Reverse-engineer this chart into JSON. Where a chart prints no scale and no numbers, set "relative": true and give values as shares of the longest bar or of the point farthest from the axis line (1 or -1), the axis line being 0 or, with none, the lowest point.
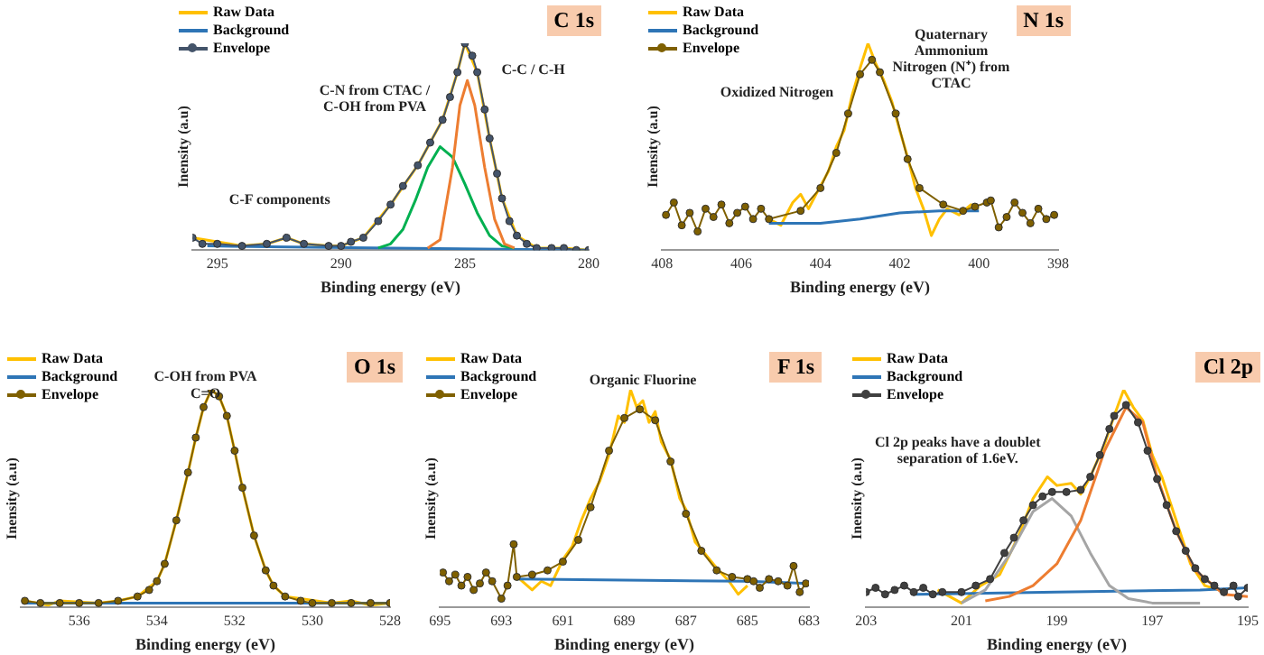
{
  "chart_data": [
    {
      "type": "line",
      "title": "C 1s",
      "xlabel": "Binding energy (eV)",
      "ylabel": "Inensity (a.u)",
      "relative": true,
      "xlim": [
        296,
        280
      ],
      "xticks": [
        295,
        290,
        285,
        280
      ],
      "legend": "top left",
      "annotations": [
        "C-F components",
        "C-N from CTAC / C-OH from PVA",
        "C-C / C-H"
      ],
      "series": [
        {
          "name": "Raw Data",
          "color": "#ffc000",
          "marker": "none",
          "x": [
            296,
            295.5,
            295,
            294.5,
            294,
            293,
            292.2,
            291.5,
            290.5,
            290,
            289.1,
            288,
            286.9,
            285.9,
            285.3,
            285,
            284.5,
            284,
            283.5,
            282.9,
            282.1,
            281,
            280
          ],
          "values": [
            0.06,
            0.05,
            0.04,
            0.03,
            0.02,
            0.03,
            0.06,
            0.03,
            0.02,
            0.02,
            0.06,
            0.22,
            0.41,
            0.63,
            0.86,
            1,
            0.86,
            0.54,
            0.25,
            0.07,
            0.01,
            0.01,
            0
          ]
        },
        {
          "name": "Background",
          "color": "#2e75b6",
          "marker": "none",
          "x": [
            295.4,
            288,
            280
          ],
          "values": [
            0.02,
            0.01,
            0
          ]
        },
        {
          "color": "#00b050",
          "marker": "none",
          "x": [
            288.5,
            288,
            287.5,
            287,
            286.5,
            286,
            285.5,
            285,
            284.5,
            284,
            283.5,
            283
          ],
          "values": [
            0.01,
            0.03,
            0.1,
            0.24,
            0.4,
            0.5,
            0.45,
            0.32,
            0.18,
            0.07,
            0.02,
            0.01
          ]
        },
        {
          "color": "#ed7d31",
          "marker": "none",
          "x": [
            286.5,
            286,
            285.5,
            285.2,
            284.9,
            284.6,
            284.2,
            283.8,
            283.4,
            283
          ],
          "values": [
            0.01,
            0.05,
            0.4,
            0.7,
            0.82,
            0.7,
            0.4,
            0.15,
            0.03,
            0.01
          ]
        },
        {
          "name": "Envelope",
          "color": "#44546a",
          "marker": "circle",
          "x": [
            296,
            295.6,
            295,
            294,
            293,
            292.2,
            291.5,
            290.5,
            290,
            289.6,
            289.1,
            288.5,
            288,
            287.5,
            286.9,
            286.4,
            285.9,
            285.6,
            285.3,
            285,
            284.7,
            284.5,
            284.2,
            284,
            283.7,
            283.5,
            283.2,
            282.9,
            282.5,
            282.1,
            281.5,
            281,
            280.5,
            280
          ],
          "values": [
            0.06,
            0.03,
            0.03,
            0.02,
            0.03,
            0.06,
            0.03,
            0.02,
            0.02,
            0.04,
            0.06,
            0.14,
            0.22,
            0.31,
            0.41,
            0.52,
            0.63,
            0.74,
            0.86,
            1,
            0.94,
            0.86,
            0.68,
            0.54,
            0.37,
            0.25,
            0.14,
            0.07,
            0.03,
            0.01,
            0.01,
            0.01,
            0,
            0
          ]
        }
      ]
    },
    {
      "type": "line",
      "title": "N 1s",
      "xlabel": "Binding energy (eV)",
      "ylabel": "Inensity (a.u)",
      "relative": true,
      "xlim": [
        408,
        398
      ],
      "xticks": [
        408,
        406,
        404,
        402,
        400,
        398
      ],
      "legend": "top left",
      "annotations": [
        "Oxidized Nitrogen",
        "Quaternary Ammonium Nitrogen (N⁺) from CTAC"
      ],
      "series": [
        {
          "name": "Raw Data",
          "color": "#ffc000",
          "marker": "none",
          "x": [
            405.3,
            405,
            404.7,
            404.5,
            404.3,
            404,
            403.8,
            403.6,
            403.4,
            403.2,
            403,
            402.8,
            402.6,
            402.4,
            402.2,
            402,
            401.8,
            401.6,
            401.4,
            401.2,
            401,
            400.8,
            400.5,
            400.2,
            400
          ],
          "values": [
            0.15,
            0.12,
            0.23,
            0.27,
            0.2,
            0.31,
            0.38,
            0.5,
            0.58,
            0.75,
            0.88,
            1,
            0.9,
            0.82,
            0.72,
            0.58,
            0.45,
            0.3,
            0.2,
            0.07,
            0.15,
            0.2,
            0.17,
            0.22,
            0.2
          ]
        },
        {
          "name": "Background",
          "color": "#2e75b6",
          "marker": "none",
          "x": [
            405.3,
            404,
            403,
            402,
            401,
            400
          ],
          "values": [
            0.13,
            0.13,
            0.15,
            0.18,
            0.19,
            0.19
          ]
        },
        {
          "name": "Envelope",
          "color": "#7f6000",
          "marker": "circle",
          "x": [
            407.9,
            407.7,
            407.5,
            407.3,
            407.1,
            406.9,
            406.7,
            406.5,
            406.3,
            406.1,
            405.9,
            405.7,
            405.5,
            405.3,
            404.5,
            404,
            403.6,
            403.3,
            403,
            402.7,
            402.5,
            402.1,
            401.8,
            401.5,
            400.9,
            400.4,
            400.1,
            399.8,
            399.7,
            399.5,
            399.3,
            399.1,
            398.9,
            398.7,
            398.5,
            398.3,
            398.1
          ],
          "values": [
            0.17,
            0.23,
            0.12,
            0.18,
            0.09,
            0.2,
            0.16,
            0.22,
            0.13,
            0.18,
            0.21,
            0.15,
            0.2,
            0.15,
            0.19,
            0.3,
            0.47,
            0.66,
            0.85,
            0.92,
            0.86,
            0.66,
            0.44,
            0.3,
            0.22,
            0.19,
            0.21,
            0.23,
            0.24,
            0.11,
            0.16,
            0.23,
            0.18,
            0.13,
            0.2,
            0.15,
            0.17
          ]
        }
      ]
    },
    {
      "type": "line",
      "title": "O 1s",
      "xlabel": "Binding energy (eV)",
      "ylabel": "Inensity (a.u)",
      "relative": true,
      "xlim": [
        537.5,
        528
      ],
      "xticks": [
        536,
        534,
        532,
        530,
        528
      ],
      "legend": "top left",
      "annotations": [
        "C-OH from PVA",
        "C=O"
      ],
      "series": [
        {
          "name": "Raw Data",
          "color": "#ffc000",
          "marker": "none",
          "x": [
            537.4,
            536.8,
            536.5,
            535.5,
            535,
            534.5,
            534,
            533.8,
            533.5,
            533.2,
            533,
            532.8,
            532.6,
            532.4,
            532.2,
            532,
            531.8,
            531.5,
            531.2,
            531,
            530.7,
            530.3,
            529.5,
            529,
            528.5,
            528
          ],
          "values": [
            0.03,
            0.01,
            0.03,
            0.02,
            0.03,
            0.05,
            0.12,
            0.2,
            0.4,
            0.62,
            0.78,
            0.92,
            1,
            0.97,
            0.88,
            0.72,
            0.55,
            0.33,
            0.17,
            0.1,
            0.05,
            0.04,
            0.02,
            0.03,
            0.01,
            0.02
          ]
        },
        {
          "name": "Background",
          "color": "#2e75b6",
          "marker": "none",
          "x": [
            537.4,
            528
          ],
          "values": [
            0.02,
            0.02
          ]
        },
        {
          "name": "Envelope",
          "color": "#7f6000",
          "marker": "circle",
          "x": [
            537.4,
            537,
            536.5,
            536,
            535.5,
            535,
            534.5,
            534.2,
            534,
            533.8,
            533.5,
            533.2,
            533,
            532.8,
            532.6,
            532.4,
            532.2,
            532,
            531.8,
            531.5,
            531.2,
            531,
            530.7,
            530.3,
            530,
            529.5,
            529,
            528.5,
            528
          ],
          "values": [
            0.03,
            0.02,
            0.02,
            0.02,
            0.02,
            0.03,
            0.05,
            0.08,
            0.12,
            0.2,
            0.4,
            0.62,
            0.78,
            0.92,
            1,
            0.97,
            0.88,
            0.72,
            0.55,
            0.33,
            0.17,
            0.1,
            0.05,
            0.03,
            0.02,
            0.02,
            0.02,
            0.02,
            0.02
          ]
        }
      ]
    },
    {
      "type": "line",
      "title": "F 1s",
      "xlabel": "Binding energy (eV)",
      "ylabel": "Inensity (a.u)",
      "relative": true,
      "xlim": [
        695,
        683
      ],
      "xticks": [
        695,
        693,
        691,
        689,
        687,
        685,
        683
      ],
      "legend": "top left",
      "annotations": [
        "Organic Fluorine"
      ],
      "series": [
        {
          "name": "Raw Data",
          "color": "#ffc000",
          "marker": "none",
          "x": [
            692.4,
            692,
            691.7,
            691.4,
            691,
            690.7,
            690.4,
            690.1,
            689.8,
            689.5,
            689.2,
            689,
            688.8,
            688.6,
            688.4,
            688.2,
            688,
            687.8,
            687.5,
            687.2,
            687,
            686.7,
            686.4,
            686,
            685.6,
            685.3,
            685
          ],
          "values": [
            0.13,
            0.08,
            0.12,
            0.1,
            0.22,
            0.28,
            0.4,
            0.5,
            0.58,
            0.7,
            0.88,
            0.85,
            1,
            0.92,
            0.95,
            0.85,
            0.9,
            0.76,
            0.68,
            0.5,
            0.45,
            0.3,
            0.25,
            0.18,
            0.12,
            0.06,
            0.1
          ]
        },
        {
          "name": "Background",
          "color": "#2e75b6",
          "marker": "none",
          "x": [
            692.5,
            689,
            685,
            683
          ],
          "values": [
            0.13,
            0.125,
            0.12,
            0.11
          ]
        },
        {
          "name": "Envelope",
          "color": "#7f6000",
          "marker": "circle",
          "x": [
            694.9,
            694.7,
            694.5,
            694.3,
            694.1,
            693.9,
            693.7,
            693.5,
            693.3,
            693,
            692.8,
            692.6,
            692.5,
            692,
            691.5,
            691,
            690.5,
            690.1,
            689.5,
            689,
            688.5,
            688,
            687.5,
            687,
            686.5,
            686,
            685.5,
            685,
            684.8,
            684.6,
            684.3,
            684,
            683.7,
            683.5,
            683.3,
            683.1
          ],
          "values": [
            0.16,
            0.12,
            0.15,
            0.1,
            0.14,
            0.08,
            0.11,
            0.16,
            0.12,
            0.04,
            0.1,
            0.29,
            0.14,
            0.15,
            0.17,
            0.21,
            0.31,
            0.46,
            0.72,
            0.87,
            0.91,
            0.86,
            0.67,
            0.43,
            0.26,
            0.17,
            0.14,
            0.13,
            0.12,
            0.09,
            0.13,
            0.12,
            0.1,
            0.19,
            0.07,
            0.11
          ]
        }
      ]
    },
    {
      "type": "line",
      "title": "Cl 2p",
      "xlabel": "Binding energy (eV)",
      "ylabel": "Inensity (a.u)",
      "relative": true,
      "xlim": [
        203,
        195
      ],
      "xticks": [
        203,
        201,
        199,
        197,
        195
      ],
      "legend": "top left",
      "annotations": [
        "Cl 2p peaks have a doublet separation of 1.6eV."
      ],
      "series": [
        {
          "name": "Raw Data",
          "color": "#ffc000",
          "marker": "none",
          "x": [
            201.5,
            201,
            200.6,
            200.2,
            199.8,
            199.5,
            199.2,
            199,
            198.7,
            198.5,
            198.3,
            198,
            197.8,
            197.6,
            197.4,
            197.2,
            197,
            196.8,
            196.5,
            196.2,
            195.9,
            195.6
          ],
          "values": [
            0.08,
            0.02,
            0.1,
            0.15,
            0.33,
            0.5,
            0.6,
            0.56,
            0.57,
            0.52,
            0.6,
            0.75,
            0.88,
            1,
            0.92,
            0.86,
            0.7,
            0.6,
            0.4,
            0.2,
            0.1,
            0.08
          ]
        },
        {
          "name": "Background",
          "color": "#2e75b6",
          "marker": "none",
          "x": [
            202,
            199,
            196,
            195
          ],
          "values": [
            0.06,
            0.07,
            0.08,
            0.09
          ]
        },
        {
          "color": "#a5a5a5",
          "marker": "none",
          "x": [
            201,
            200.5,
            200,
            199.5,
            199.1,
            198.7,
            198.3,
            197.9,
            197.5,
            197,
            196
          ],
          "values": [
            0.02,
            0.08,
            0.24,
            0.44,
            0.5,
            0.42,
            0.25,
            0.1,
            0.04,
            0.02,
            0.02
          ]
        },
        {
          "color": "#ed7d31",
          "marker": "none",
          "x": [
            200.5,
            200,
            199.5,
            199,
            198.5,
            198,
            197.55,
            197.2,
            196.9,
            196.5,
            196.1,
            195.5,
            195
          ],
          "values": [
            0.03,
            0.05,
            0.1,
            0.2,
            0.4,
            0.72,
            0.92,
            0.85,
            0.6,
            0.35,
            0.17,
            0.06,
            0.05
          ]
        },
        {
          "name": "Envelope",
          "color": "#404040",
          "marker": "circle",
          "x": [
            203,
            202.8,
            202.6,
            202.4,
            202.2,
            202,
            201.8,
            201.6,
            201.4,
            201,
            200.7,
            200.4,
            200.1,
            199.9,
            199.7,
            199.5,
            199.3,
            199.1,
            198.8,
            198.5,
            198.3,
            198.1,
            197.9,
            197.8,
            197.55,
            197.3,
            197.1,
            196.9,
            196.7,
            196.5,
            196.3,
            196.1,
            195.9,
            195.7,
            195.5,
            195.3,
            195.2,
            195
          ],
          "values": [
            0.07,
            0.09,
            0.06,
            0.08,
            0.1,
            0.07,
            0.09,
            0.06,
            0.07,
            0.07,
            0.1,
            0.13,
            0.25,
            0.32,
            0.4,
            0.47,
            0.51,
            0.53,
            0.53,
            0.54,
            0.6,
            0.7,
            0.82,
            0.88,
            0.93,
            0.85,
            0.72,
            0.59,
            0.47,
            0.35,
            0.26,
            0.18,
            0.13,
            0.1,
            0.07,
            0.1,
            0.05,
            0.09
          ]
        }
      ]
    }
  ]
}
